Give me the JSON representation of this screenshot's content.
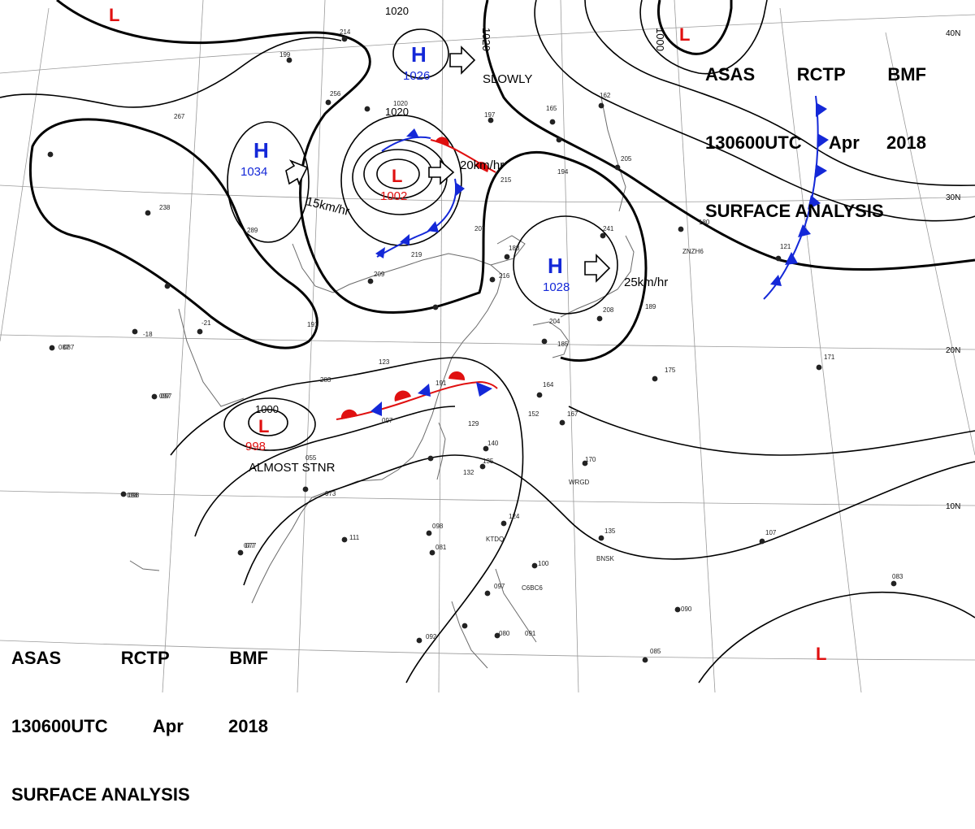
{
  "header_top": {
    "line1": [
      "ASAS",
      "RCTP",
      "BMF"
    ],
    "line2": [
      "130600UTC",
      "Apr",
      "2018"
    ],
    "line3": "SURFACE ANALYSIS"
  },
  "header_bottom": {
    "line1": [
      "ASAS",
      "RCTP",
      "BMF"
    ],
    "line2": [
      "130600UTC",
      "Apr",
      "2018"
    ],
    "line3": "SURFACE ANALYSIS"
  },
  "latitude_labels": [
    "40N",
    "30N",
    "20N",
    "10N"
  ],
  "colors": {
    "high": "#1428d8",
    "low": "#e01010",
    "cold_front": "#1428d8",
    "warm_front": "#e01010",
    "isobar": "#000000",
    "coast": "#666666"
  },
  "pressure_systems": [
    {
      "type": "H",
      "center_pressure": "1026",
      "movement": "SLOWLY"
    },
    {
      "type": "H",
      "center_pressure": "1034",
      "movement": "15km/hr"
    },
    {
      "type": "L",
      "center_pressure": "1002",
      "movement": "20km/hr"
    },
    {
      "type": "H",
      "center_pressure": "1028",
      "movement": "25km/hr"
    },
    {
      "type": "L",
      "center_pressure": "998",
      "movement": "ALMOST STNR"
    },
    {
      "type": "L",
      "center_pressure": ""
    },
    {
      "type": "L",
      "center_pressure": ""
    },
    {
      "type": "L",
      "center_pressure": ""
    }
  ],
  "isobar_labels": [
    "1020",
    "1020",
    "1020",
    "1000",
    "1000"
  ],
  "station_labels": [
    "WRGD",
    "KTDQ",
    "BNSK",
    "C6BC6",
    "ZNZH6",
    "087",
    "097",
    "098",
    "077"
  ]
}
